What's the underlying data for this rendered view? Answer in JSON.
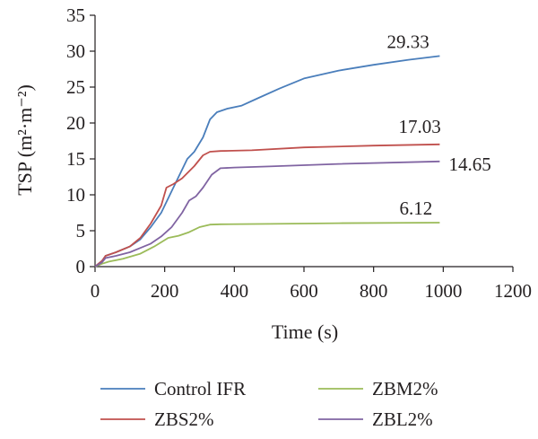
{
  "chart_data": {
    "type": "line",
    "xlabel": "Time (s)",
    "ylabel": "TSP (m²·m⁻²)",
    "xlim": [
      0,
      1200
    ],
    "ylim": [
      0,
      35
    ],
    "xticks": [
      0,
      200,
      400,
      600,
      800,
      1000,
      1200
    ],
    "yticks": [
      0,
      5,
      10,
      15,
      20,
      25,
      30,
      35
    ],
    "grid": false,
    "legend_position": "bottom",
    "series": [
      {
        "name": "Control IFR",
        "color": "#4a7ebb",
        "end_label": "29.33",
        "points": [
          [
            0,
            0
          ],
          [
            20,
            0.8
          ],
          [
            30,
            1.5
          ],
          [
            60,
            2
          ],
          [
            100,
            2.8
          ],
          [
            130,
            3.8
          ],
          [
            160,
            5.5
          ],
          [
            190,
            7.5
          ],
          [
            220,
            10.5
          ],
          [
            245,
            13
          ],
          [
            265,
            15
          ],
          [
            285,
            16
          ],
          [
            310,
            18
          ],
          [
            330,
            20.5
          ],
          [
            350,
            21.5
          ],
          [
            380,
            22
          ],
          [
            420,
            22.4
          ],
          [
            470,
            23.5
          ],
          [
            530,
            24.8
          ],
          [
            600,
            26.2
          ],
          [
            700,
            27.3
          ],
          [
            800,
            28.1
          ],
          [
            900,
            28.8
          ],
          [
            990,
            29.33
          ]
        ]
      },
      {
        "name": "ZBS2%",
        "color": "#c0504d",
        "end_label": "17.03",
        "points": [
          [
            0,
            0
          ],
          [
            20,
            0.8
          ],
          [
            30,
            1.5
          ],
          [
            60,
            2
          ],
          [
            100,
            2.8
          ],
          [
            130,
            4
          ],
          [
            160,
            6
          ],
          [
            190,
            8.5
          ],
          [
            205,
            11
          ],
          [
            225,
            11.5
          ],
          [
            250,
            12.3
          ],
          [
            285,
            14
          ],
          [
            310,
            15.5
          ],
          [
            330,
            16
          ],
          [
            360,
            16.1
          ],
          [
            450,
            16.2
          ],
          [
            600,
            16.6
          ],
          [
            800,
            16.85
          ],
          [
            990,
            17.03
          ]
        ]
      },
      {
        "name": "ZBM2%",
        "color": "#9bbb59",
        "end_label": "6.12",
        "points": [
          [
            0,
            0
          ],
          [
            20,
            0.4
          ],
          [
            40,
            0.7
          ],
          [
            80,
            1.1
          ],
          [
            130,
            1.8
          ],
          [
            170,
            2.8
          ],
          [
            210,
            4
          ],
          [
            240,
            4.3
          ],
          [
            270,
            4.8
          ],
          [
            300,
            5.5
          ],
          [
            330,
            5.85
          ],
          [
            360,
            5.9
          ],
          [
            500,
            5.95
          ],
          [
            700,
            6.05
          ],
          [
            990,
            6.12
          ]
        ]
      },
      {
        "name": "ZBL2%",
        "color": "#8064a2",
        "end_label": "14.65",
        "points": [
          [
            0,
            0
          ],
          [
            20,
            0.6
          ],
          [
            30,
            1.2
          ],
          [
            60,
            1.5
          ],
          [
            100,
            2
          ],
          [
            130,
            2.6
          ],
          [
            160,
            3.2
          ],
          [
            190,
            4.2
          ],
          [
            220,
            5.5
          ],
          [
            250,
            7.5
          ],
          [
            270,
            9.2
          ],
          [
            290,
            9.8
          ],
          [
            310,
            11
          ],
          [
            335,
            12.8
          ],
          [
            360,
            13.7
          ],
          [
            400,
            13.8
          ],
          [
            500,
            13.95
          ],
          [
            700,
            14.3
          ],
          [
            990,
            14.65
          ]
        ]
      }
    ]
  }
}
